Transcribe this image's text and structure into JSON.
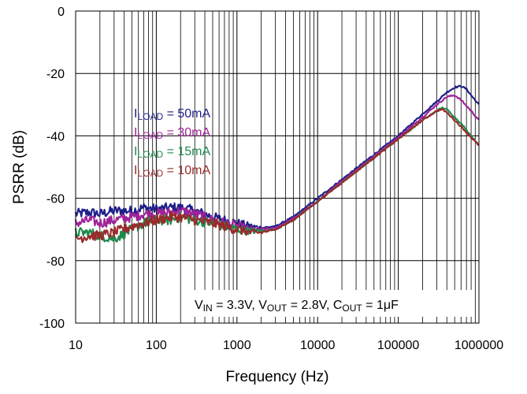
{
  "chart_data": {
    "type": "line",
    "title": "",
    "xlabel": "Frequency (Hz)",
    "ylabel": "PSRR (dB)",
    "x_scale": "log",
    "xlim": [
      10,
      1000000
    ],
    "ylim": [
      -100,
      0
    ],
    "grid": true,
    "x_ticks": [
      {
        "value": 10,
        "label": "10"
      },
      {
        "value": 100,
        "label": "100"
      },
      {
        "value": 1000,
        "label": "1000"
      },
      {
        "value": 10000,
        "label": "10000"
      },
      {
        "value": 100000,
        "label": "100000"
      },
      {
        "value": 1000000,
        "label": "1000000"
      }
    ],
    "y_ticks": [
      {
        "value": 0,
        "label": "0"
      },
      {
        "value": -20,
        "label": "-20"
      },
      {
        "value": -40,
        "label": "-40"
      },
      {
        "value": -60,
        "label": "-60"
      },
      {
        "value": -80,
        "label": "-80"
      },
      {
        "value": -100,
        "label": "-100"
      }
    ],
    "legend_position": "upper-left inside plot",
    "series": [
      {
        "name_main": "I",
        "name_sub": "LOAD",
        "name_rest": " = 50mA",
        "color": "#1f1f8a",
        "points": [
          [
            10,
            -65
          ],
          [
            15,
            -64.5
          ],
          [
            20,
            -65
          ],
          [
            30,
            -64
          ],
          [
            50,
            -64
          ],
          [
            70,
            -63
          ],
          [
            100,
            -63.5
          ],
          [
            150,
            -63
          ],
          [
            200,
            -63
          ],
          [
            300,
            -64
          ],
          [
            500,
            -66
          ],
          [
            700,
            -67
          ],
          [
            1000,
            -68
          ],
          [
            1500,
            -69
          ],
          [
            2000,
            -69.5
          ],
          [
            3000,
            -69
          ],
          [
            5000,
            -66
          ],
          [
            10000,
            -60
          ],
          [
            20000,
            -54
          ],
          [
            50000,
            -46
          ],
          [
            100000,
            -40
          ],
          [
            200000,
            -33
          ],
          [
            300000,
            -29
          ],
          [
            400000,
            -26
          ],
          [
            500000,
            -24.5
          ],
          [
            600000,
            -24
          ],
          [
            700000,
            -25
          ],
          [
            800000,
            -27
          ],
          [
            1000000,
            -30
          ]
        ]
      },
      {
        "name_main": "I",
        "name_sub": "LOAD",
        "name_rest": " = 30mA",
        "color": "#a0229a",
        "points": [
          [
            10,
            -68
          ],
          [
            15,
            -67
          ],
          [
            20,
            -68
          ],
          [
            30,
            -67
          ],
          [
            50,
            -66
          ],
          [
            70,
            -65
          ],
          [
            100,
            -65
          ],
          [
            150,
            -64.5
          ],
          [
            200,
            -64
          ],
          [
            300,
            -65
          ],
          [
            500,
            -67
          ],
          [
            700,
            -68
          ],
          [
            1000,
            -69
          ],
          [
            1500,
            -70
          ],
          [
            2000,
            -70
          ],
          [
            3000,
            -69.5
          ],
          [
            5000,
            -66.5
          ],
          [
            10000,
            -61
          ],
          [
            20000,
            -54.5
          ],
          [
            50000,
            -46.5
          ],
          [
            100000,
            -40.5
          ],
          [
            200000,
            -34
          ],
          [
            300000,
            -30
          ],
          [
            400000,
            -27.5
          ],
          [
            500000,
            -27
          ],
          [
            600000,
            -28.5
          ],
          [
            800000,
            -32
          ],
          [
            1000000,
            -35
          ]
        ]
      },
      {
        "name_main": "I",
        "name_sub": "LOAD",
        "name_rest": " = 15mA",
        "color": "#1e8a4c",
        "points": [
          [
            10,
            -71
          ],
          [
            15,
            -71
          ],
          [
            20,
            -72
          ],
          [
            30,
            -73
          ],
          [
            50,
            -70
          ],
          [
            70,
            -68
          ],
          [
            100,
            -67
          ],
          [
            150,
            -67
          ],
          [
            200,
            -66
          ],
          [
            300,
            -67
          ],
          [
            500,
            -68
          ],
          [
            700,
            -69
          ],
          [
            1000,
            -70
          ],
          [
            1500,
            -70.5
          ],
          [
            2000,
            -70.5
          ],
          [
            3000,
            -70
          ],
          [
            5000,
            -67
          ],
          [
            10000,
            -61
          ],
          [
            20000,
            -55
          ],
          [
            50000,
            -47
          ],
          [
            100000,
            -41
          ],
          [
            200000,
            -35
          ],
          [
            300000,
            -32
          ],
          [
            350000,
            -31
          ],
          [
            400000,
            -31.5
          ],
          [
            500000,
            -34
          ],
          [
            600000,
            -36
          ],
          [
            800000,
            -40
          ],
          [
            1000000,
            -43
          ]
        ]
      },
      {
        "name_main": "I",
        "name_sub": "LOAD",
        "name_rest": " = 10mA",
        "color": "#9b2a2a",
        "points": [
          [
            10,
            -73
          ],
          [
            15,
            -72
          ],
          [
            20,
            -72
          ],
          [
            30,
            -71
          ],
          [
            50,
            -69
          ],
          [
            70,
            -68
          ],
          [
            100,
            -67
          ],
          [
            150,
            -66
          ],
          [
            200,
            -66
          ],
          [
            300,
            -67
          ],
          [
            500,
            -68
          ],
          [
            700,
            -69
          ],
          [
            1000,
            -70
          ],
          [
            1500,
            -71
          ],
          [
            2000,
            -71
          ],
          [
            3000,
            -70
          ],
          [
            5000,
            -67
          ],
          [
            10000,
            -61
          ],
          [
            20000,
            -55
          ],
          [
            50000,
            -47
          ],
          [
            100000,
            -41
          ],
          [
            200000,
            -35
          ],
          [
            300000,
            -32
          ],
          [
            350000,
            -31.5
          ],
          [
            400000,
            -32.5
          ],
          [
            500000,
            -35
          ],
          [
            600000,
            -37
          ],
          [
            800000,
            -40.5
          ],
          [
            1000000,
            -43
          ]
        ]
      }
    ],
    "annotation": {
      "parts": [
        {
          "t": "V",
          "sub": false
        },
        {
          "t": "IN",
          "sub": true
        },
        {
          "t": " = 3.3V, V",
          "sub": false
        },
        {
          "t": "OUT",
          "sub": true
        },
        {
          "t": " = 2.8V, C",
          "sub": false
        },
        {
          "t": "OUT",
          "sub": true
        },
        {
          "t": " = 1μF",
          "sub": false
        }
      ]
    }
  }
}
